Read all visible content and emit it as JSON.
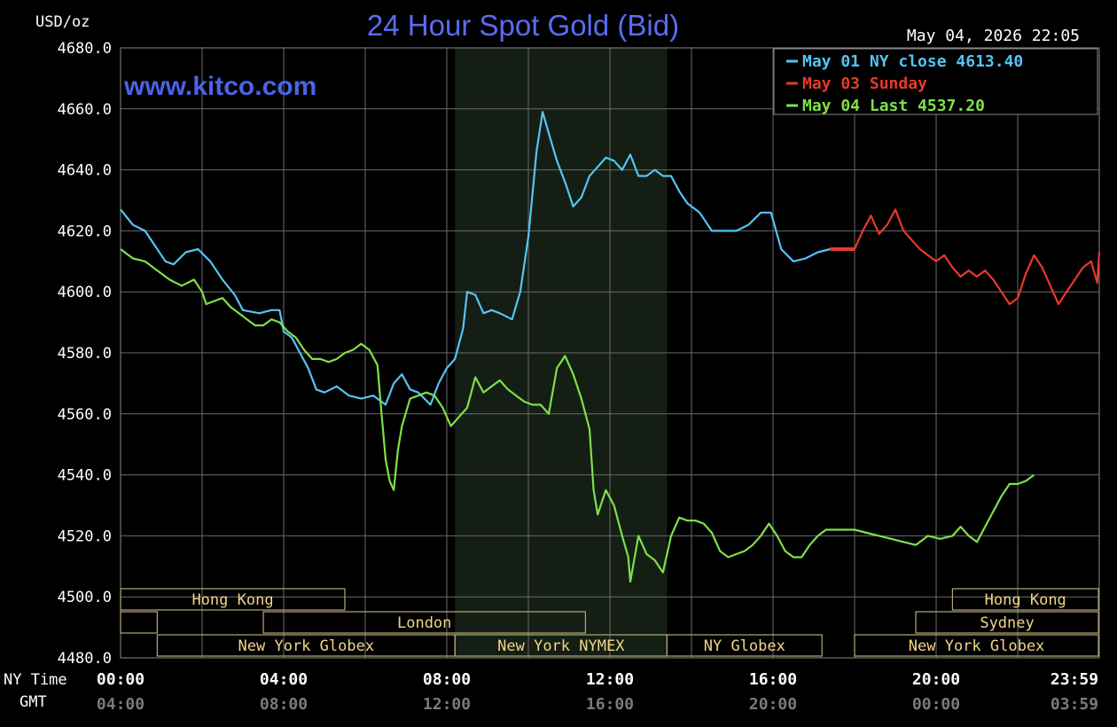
{
  "chart_data": {
    "type": "line",
    "title": "24 Hour Spot Gold (Bid)",
    "ylabel": "USD/oz",
    "timestamp": "May 04, 2026 22:05",
    "watermark": "www.kitco.com",
    "ylim": [
      4480,
      4680
    ],
    "yticks": [
      "4680.0",
      "4660.0",
      "4640.0",
      "4620.0",
      "4600.0",
      "4580.0",
      "4560.0",
      "4540.0",
      "4520.0",
      "4500.0",
      "4480.0"
    ],
    "xlim": [
      0,
      24
    ],
    "row_labels": {
      "ny": "NY Time",
      "gmt": "GMT"
    },
    "xticks_ny": [
      {
        "h": 0,
        "label": "00:00"
      },
      {
        "h": 4,
        "label": "04:00"
      },
      {
        "h": 8,
        "label": "08:00"
      },
      {
        "h": 12,
        "label": "12:00"
      },
      {
        "h": 16,
        "label": "16:00"
      },
      {
        "h": 20,
        "label": "20:00"
      },
      {
        "h": 23.98,
        "label": "23:59"
      }
    ],
    "xticks_gmt": [
      "04:00",
      "08:00",
      "12:00",
      "16:00",
      "20:00",
      "00:00",
      "03:59"
    ],
    "shaded_region": [
      8.2,
      13.4
    ],
    "grid": true,
    "legend_position": "top-right",
    "series": [
      {
        "name": "May 01 NY close 4613.40",
        "color": "#55c3f5",
        "points": [
          [
            0,
            4627
          ],
          [
            0.3,
            4622
          ],
          [
            0.6,
            4620
          ],
          [
            0.9,
            4614
          ],
          [
            1.1,
            4610
          ],
          [
            1.3,
            4609
          ],
          [
            1.6,
            4613
          ],
          [
            1.9,
            4614
          ],
          [
            2.2,
            4610
          ],
          [
            2.5,
            4604
          ],
          [
            2.8,
            4599
          ],
          [
            3.0,
            4594
          ],
          [
            3.4,
            4593
          ],
          [
            3.7,
            4594
          ],
          [
            3.9,
            4594
          ],
          [
            4.0,
            4587
          ],
          [
            4.2,
            4585
          ],
          [
            4.4,
            4580
          ],
          [
            4.6,
            4575
          ],
          [
            4.8,
            4568
          ],
          [
            5.0,
            4567
          ],
          [
            5.3,
            4569
          ],
          [
            5.6,
            4566
          ],
          [
            5.9,
            4565
          ],
          [
            6.2,
            4566
          ],
          [
            6.5,
            4563
          ],
          [
            6.7,
            4570
          ],
          [
            6.9,
            4573
          ],
          [
            7.1,
            4568
          ],
          [
            7.3,
            4567
          ],
          [
            7.6,
            4563
          ],
          [
            7.8,
            4570
          ],
          [
            8.0,
            4575
          ],
          [
            8.2,
            4578
          ],
          [
            8.4,
            4588
          ],
          [
            8.5,
            4600
          ],
          [
            8.7,
            4599
          ],
          [
            8.9,
            4593
          ],
          [
            9.1,
            4594
          ],
          [
            9.3,
            4593
          ],
          [
            9.6,
            4591
          ],
          [
            9.8,
            4600
          ],
          [
            10.0,
            4618
          ],
          [
            10.2,
            4646
          ],
          [
            10.35,
            4659
          ],
          [
            10.5,
            4652
          ],
          [
            10.7,
            4643
          ],
          [
            10.9,
            4636
          ],
          [
            11.1,
            4628
          ],
          [
            11.3,
            4631
          ],
          [
            11.5,
            4638
          ],
          [
            11.7,
            4641
          ],
          [
            11.9,
            4644
          ],
          [
            12.1,
            4643
          ],
          [
            12.3,
            4640
          ],
          [
            12.5,
            4645
          ],
          [
            12.7,
            4638
          ],
          [
            12.9,
            4638
          ],
          [
            13.1,
            4640
          ],
          [
            13.3,
            4638
          ],
          [
            13.5,
            4638
          ],
          [
            13.7,
            4633
          ],
          [
            13.9,
            4629
          ],
          [
            14.2,
            4626
          ],
          [
            14.5,
            4620
          ],
          [
            14.8,
            4620
          ],
          [
            15.1,
            4620
          ],
          [
            15.4,
            4622
          ],
          [
            15.7,
            4626
          ],
          [
            15.95,
            4626
          ],
          [
            16.2,
            4614
          ],
          [
            16.5,
            4610
          ],
          [
            16.8,
            4611
          ],
          [
            17.1,
            4613
          ],
          [
            17.4,
            4614
          ]
        ]
      },
      {
        "name": "May 03 Sunday",
        "color": "#e8392b",
        "points": [
          [
            17.4,
            4614
          ],
          [
            18.0,
            4614
          ],
          [
            18.2,
            4620
          ],
          [
            18.4,
            4625
          ],
          [
            18.6,
            4619
          ],
          [
            18.8,
            4622
          ],
          [
            19.0,
            4627
          ],
          [
            19.2,
            4620
          ],
          [
            19.4,
            4617
          ],
          [
            19.6,
            4614
          ],
          [
            19.8,
            4612
          ],
          [
            20.0,
            4610
          ],
          [
            20.2,
            4612
          ],
          [
            20.4,
            4608
          ],
          [
            20.6,
            4605
          ],
          [
            20.8,
            4607
          ],
          [
            21.0,
            4605
          ],
          [
            21.2,
            4607
          ],
          [
            21.4,
            4604
          ],
          [
            21.6,
            4600
          ],
          [
            21.8,
            4596
          ],
          [
            22.0,
            4598
          ],
          [
            22.2,
            4606
          ],
          [
            22.4,
            4612
          ],
          [
            22.6,
            4608
          ],
          [
            22.8,
            4602
          ],
          [
            23.0,
            4596
          ],
          [
            23.2,
            4600
          ],
          [
            23.4,
            4604
          ],
          [
            23.6,
            4608
          ],
          [
            23.8,
            4610
          ],
          [
            23.95,
            4603
          ],
          [
            24.0,
            4613
          ]
        ]
      },
      {
        "name": "May 04 Last 4537.20",
        "color": "#7fe04a",
        "points": [
          [
            0,
            4614
          ],
          [
            0.3,
            4611
          ],
          [
            0.6,
            4610
          ],
          [
            0.9,
            4607
          ],
          [
            1.2,
            4604
          ],
          [
            1.5,
            4602
          ],
          [
            1.8,
            4604
          ],
          [
            2.0,
            4600
          ],
          [
            2.1,
            4596
          ],
          [
            2.3,
            4597
          ],
          [
            2.5,
            4598
          ],
          [
            2.7,
            4595
          ],
          [
            2.9,
            4593
          ],
          [
            3.1,
            4591
          ],
          [
            3.3,
            4589
          ],
          [
            3.5,
            4589
          ],
          [
            3.7,
            4591
          ],
          [
            3.9,
            4590
          ],
          [
            4.1,
            4587
          ],
          [
            4.3,
            4585
          ],
          [
            4.5,
            4581
          ],
          [
            4.7,
            4578
          ],
          [
            4.9,
            4578
          ],
          [
            5.1,
            4577
          ],
          [
            5.3,
            4578
          ],
          [
            5.5,
            4580
          ],
          [
            5.7,
            4581
          ],
          [
            5.9,
            4583
          ],
          [
            6.1,
            4581
          ],
          [
            6.3,
            4576
          ],
          [
            6.4,
            4560
          ],
          [
            6.5,
            4545
          ],
          [
            6.6,
            4538
          ],
          [
            6.7,
            4535
          ],
          [
            6.8,
            4548
          ],
          [
            6.9,
            4556
          ],
          [
            7.1,
            4565
          ],
          [
            7.3,
            4566
          ],
          [
            7.5,
            4567
          ],
          [
            7.7,
            4566
          ],
          [
            7.9,
            4562
          ],
          [
            8.1,
            4556
          ],
          [
            8.3,
            4559
          ],
          [
            8.5,
            4562
          ],
          [
            8.7,
            4572
          ],
          [
            8.9,
            4567
          ],
          [
            9.1,
            4569
          ],
          [
            9.3,
            4571
          ],
          [
            9.5,
            4568
          ],
          [
            9.7,
            4566
          ],
          [
            9.9,
            4564
          ],
          [
            10.1,
            4563
          ],
          [
            10.3,
            4563
          ],
          [
            10.5,
            4560
          ],
          [
            10.7,
            4575
          ],
          [
            10.9,
            4579
          ],
          [
            11.1,
            4573
          ],
          [
            11.3,
            4565
          ],
          [
            11.5,
            4555
          ],
          [
            11.6,
            4535
          ],
          [
            11.7,
            4527
          ],
          [
            11.9,
            4535
          ],
          [
            12.1,
            4530
          ],
          [
            12.3,
            4520
          ],
          [
            12.45,
            4513
          ],
          [
            12.5,
            4505
          ],
          [
            12.7,
            4520
          ],
          [
            12.9,
            4514
          ],
          [
            13.1,
            4512
          ],
          [
            13.3,
            4508
          ],
          [
            13.5,
            4520
          ],
          [
            13.7,
            4526
          ],
          [
            13.9,
            4525
          ],
          [
            14.1,
            4525
          ],
          [
            14.3,
            4524
          ],
          [
            14.5,
            4521
          ],
          [
            14.7,
            4515
          ],
          [
            14.9,
            4513
          ],
          [
            15.1,
            4514
          ],
          [
            15.3,
            4515
          ],
          [
            15.5,
            4517
          ],
          [
            15.7,
            4520
          ],
          [
            15.9,
            4524
          ],
          [
            16.1,
            4520
          ],
          [
            16.3,
            4515
          ],
          [
            16.5,
            4513
          ],
          [
            16.7,
            4513
          ],
          [
            16.9,
            4517
          ],
          [
            17.1,
            4520
          ],
          [
            17.3,
            4522
          ],
          [
            17.6,
            4522
          ],
          [
            18.0,
            4522
          ],
          [
            18.3,
            4521
          ],
          [
            18.6,
            4520
          ],
          [
            18.9,
            4519
          ],
          [
            19.2,
            4518
          ],
          [
            19.5,
            4517
          ],
          [
            19.8,
            4520
          ],
          [
            20.1,
            4519
          ],
          [
            20.4,
            4520
          ],
          [
            20.6,
            4523
          ],
          [
            20.8,
            4520
          ],
          [
            21.0,
            4518
          ],
          [
            21.2,
            4523
          ],
          [
            21.4,
            4528
          ],
          [
            21.6,
            4533
          ],
          [
            21.8,
            4537
          ],
          [
            22.0,
            4537
          ],
          [
            22.2,
            4538
          ],
          [
            22.4,
            4540
          ]
        ]
      }
    ],
    "sessions": [
      {
        "label": "Hong Kong",
        "start": 0,
        "end": 5.5,
        "row": 0
      },
      {
        "label": "",
        "start": 0,
        "end": 0.9,
        "row": 1
      },
      {
        "label": "London",
        "start": 3.5,
        "end": 11.4,
        "row": 1
      },
      {
        "label": "New York Globex",
        "start": 0.9,
        "end": 8.2,
        "row": 2
      },
      {
        "label": "New York NYMEX",
        "start": 8.2,
        "end": 13.4,
        "row": 2
      },
      {
        "label": "NY Globex",
        "start": 13.4,
        "end": 17.2,
        "row": 2
      },
      {
        "label": "Hong Kong",
        "start": 20.4,
        "end": 23.98,
        "row": 0
      },
      {
        "label": "Sydney",
        "start": 19.5,
        "end": 23.98,
        "row": 1
      },
      {
        "label": "New York Globex",
        "start": 18.0,
        "end": 23.98,
        "row": 2
      }
    ]
  }
}
